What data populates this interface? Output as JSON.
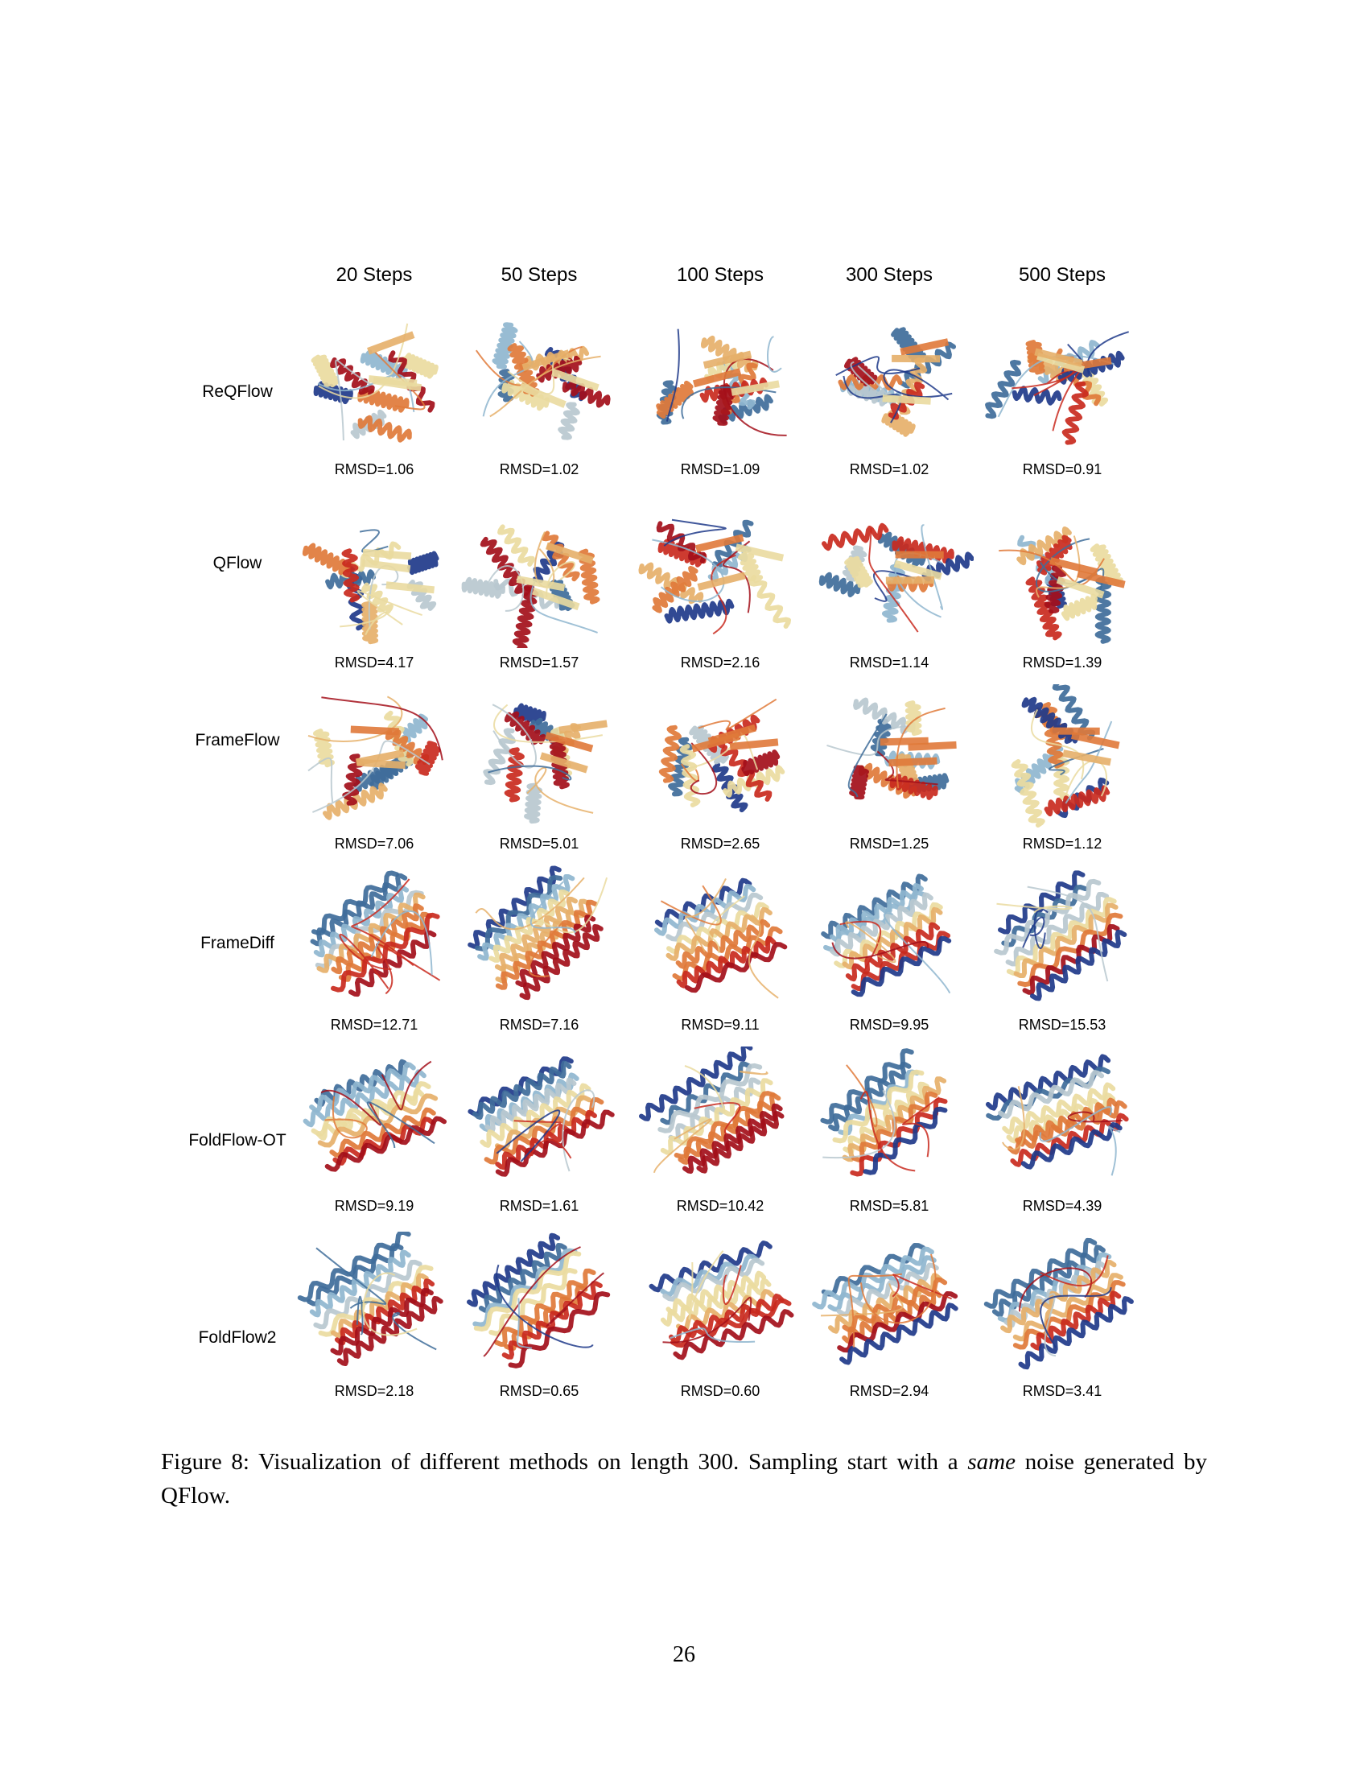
{
  "figure": {
    "column_headers": [
      "20 Steps",
      "50 Steps",
      "100 Steps",
      "300 Steps",
      "500 Steps"
    ],
    "rows": [
      {
        "method": "ReQFlow",
        "rmsd": [
          "RMSD=1.06",
          "RMSD=1.02",
          "RMSD=1.09",
          "RMSD=1.02",
          "RMSD=0.91"
        ]
      },
      {
        "method": "QFlow",
        "rmsd": [
          "RMSD=4.17",
          "RMSD=1.57",
          "RMSD=2.16",
          "RMSD=1.14",
          "RMSD=1.39"
        ]
      },
      {
        "method": "FrameFlow",
        "rmsd": [
          "RMSD=7.06",
          "RMSD=5.01",
          "RMSD=2.65",
          "RMSD=1.25",
          "RMSD=1.12"
        ]
      },
      {
        "method": "FrameDiff",
        "rmsd": [
          "RMSD=12.71",
          "RMSD=7.16",
          "RMSD=9.11",
          "RMSD=9.95",
          "RMSD=15.53"
        ]
      },
      {
        "method": "FoldFlow-OT",
        "rmsd": [
          "RMSD=9.19",
          "RMSD=1.61",
          "RMSD=10.42",
          "RMSD=5.81",
          "RMSD=4.39"
        ]
      },
      {
        "method": "FoldFlow2",
        "rmsd": [
          "RMSD=2.18",
          "RMSD=0.65",
          "RMSD=0.60",
          "RMSD=2.94",
          "RMSD=3.41"
        ]
      }
    ],
    "structure_image": "protein-structure",
    "colors": [
      "#1f3a8a",
      "#3f6d9a",
      "#8fb6cf",
      "#b9c8cf",
      "#eadba0",
      "#e6b06a",
      "#e07a3a",
      "#c92a1e",
      "#a30f1a"
    ]
  },
  "caption": {
    "label": "Figure 8:",
    "text_before": "Visualization of different methods on length 300. Sampling start with a",
    "emphasis": "same",
    "text_after": "noise generated by QFlow."
  },
  "page_number": "26"
}
